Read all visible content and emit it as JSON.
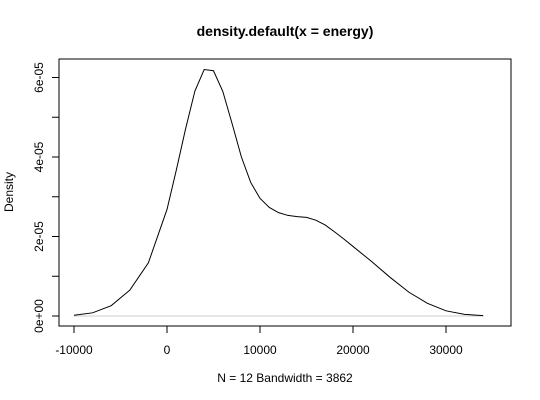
{
  "chart_data": {
    "type": "line",
    "title": "density.default(x = energy)",
    "xlabel": "N = 12   Bandwidth = 3862",
    "ylabel": "Density",
    "xlim": [
      -11000,
      34000
    ],
    "ylim": [
      0,
      6.8e-05
    ],
    "x_ticks": [
      -10000,
      0,
      10000,
      20000,
      30000
    ],
    "x_tick_labels": [
      "-10000",
      "0",
      "10000",
      "20000",
      "30000"
    ],
    "y_ticks": [
      0,
      1e-05,
      2e-05,
      3e-05,
      4e-05,
      5e-05,
      6e-05
    ],
    "y_tick_labels": [
      "0e+00",
      "",
      "2e-05",
      "",
      "4e-05",
      "",
      "6e-05"
    ],
    "series": [
      {
        "x": [
          -10000,
          -8000,
          -6000,
          -4000,
          -2000,
          0,
          1000,
          2000,
          3000,
          4000,
          5000,
          6000,
          7000,
          8000,
          9000,
          10000,
          11000,
          12000,
          13000,
          14000,
          15000,
          16000,
          17000,
          18000,
          19000,
          20000,
          22000,
          24000,
          26000,
          28000,
          30000,
          32000,
          34000
        ],
        "y": [
          2e-07,
          8e-07,
          2.6e-06,
          6.5e-06,
          1.34e-05,
          2.68e-05,
          3.67e-05,
          4.71e-05,
          5.66e-05,
          6.2e-05,
          6.17e-05,
          5.65e-05,
          4.84e-05,
          4e-05,
          3.36e-05,
          2.96e-05,
          2.73e-05,
          2.6e-05,
          2.53e-05,
          2.5e-05,
          2.48e-05,
          2.41e-05,
          2.29e-05,
          2.12e-05,
          1.94e-05,
          1.75e-05,
          1.37e-05,
          9.7e-06,
          6e-06,
          3.2e-06,
          1.3e-06,
          4e-07,
          1e-07
        ]
      }
    ],
    "grid": false,
    "legend": "none"
  }
}
